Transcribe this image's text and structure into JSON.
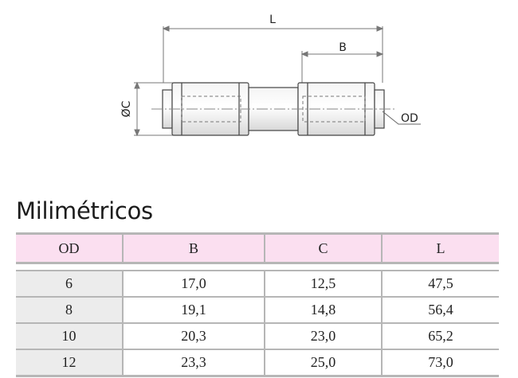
{
  "drawing": {
    "dim_length": "L",
    "dim_insert": "B",
    "dim_diameter": "ØC",
    "dim_tube": "OD"
  },
  "section_title": "Milimétricos",
  "table": {
    "headers": [
      "OD",
      "B",
      "C",
      "L"
    ],
    "rows": [
      [
        "6",
        "17,0",
        "12,5",
        "47,5"
      ],
      [
        "8",
        "19,1",
        "14,8",
        "56,4"
      ],
      [
        "10",
        "20,3",
        "23,0",
        "65,2"
      ],
      [
        "12",
        "23,3",
        "25,0",
        "73,0"
      ]
    ]
  }
}
